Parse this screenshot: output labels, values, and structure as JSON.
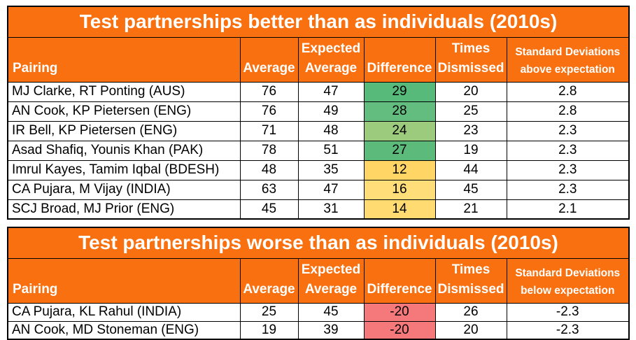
{
  "colors": {
    "orange": "#F8700F",
    "header_text": "#FFFFFF",
    "body_text": "#000000",
    "border": "#000000",
    "green_strong": "#57BA7A",
    "green_light": "#9CCB7D",
    "yellow": "#FFD666",
    "red": "#F5797B"
  },
  "chart_data": [
    {
      "type": "table",
      "title": "Test partnerships better than as individuals (2010s)",
      "headers": {
        "pairing": "Pairing",
        "average": "Average",
        "expected": "Expected\nAverage",
        "difference": "Difference",
        "times": "Times\nDismissed",
        "sd": "Standard Deviations\nabove expectation"
      },
      "rows": [
        {
          "pairing": "MJ Clarke, RT Ponting (AUS)",
          "average": "76",
          "expected": "47",
          "difference": "29",
          "times": "20",
          "sd": "2.8",
          "diff_color": "#57BA7A"
        },
        {
          "pairing": "AN Cook, KP Pietersen (ENG)",
          "average": "76",
          "expected": "49",
          "difference": "28",
          "times": "25",
          "sd": "2.8",
          "diff_color": "#63BD7F"
        },
        {
          "pairing": "IR Bell, KP Pietersen (ENG)",
          "average": "71",
          "expected": "48",
          "difference": "24",
          "times": "23",
          "sd": "2.3",
          "diff_color": "#9CCB7D"
        },
        {
          "pairing": "Asad Shafiq, Younis Khan (PAK)",
          "average": "78",
          "expected": "51",
          "difference": "27",
          "times": "19",
          "sd": "2.3",
          "diff_color": "#5CBB7B"
        },
        {
          "pairing": "Imrul Kayes, Tamim Iqbal (BDESH)",
          "average": "48",
          "expected": "35",
          "difference": "12",
          "times": "44",
          "sd": "2.3",
          "diff_color": "#FFD666"
        },
        {
          "pairing": "CA Pujara, M Vijay (INDIA)",
          "average": "63",
          "expected": "47",
          "difference": "16",
          "times": "45",
          "sd": "2.3",
          "diff_color": "#FFDE7A"
        },
        {
          "pairing": "SCJ Broad, MJ Prior (ENG)",
          "average": "45",
          "expected": "31",
          "difference": "14",
          "times": "21",
          "sd": "2.1",
          "diff_color": "#FFDB72"
        }
      ]
    },
    {
      "type": "table",
      "title": "Test partnerships worse than as individuals (2010s)",
      "headers": {
        "pairing": "Pairing",
        "average": "Average",
        "expected": "Expected\nAverage",
        "difference": "Difference",
        "times": "Times\nDismissed",
        "sd": "Standard Deviations\nbelow expectation"
      },
      "rows": [
        {
          "pairing": "CA Pujara, KL Rahul (INDIA)",
          "average": "25",
          "expected": "45",
          "difference": "-20",
          "times": "26",
          "sd": "-2.3",
          "diff_color": "#F5797B"
        },
        {
          "pairing": "AN Cook, MD Stoneman (ENG)",
          "average": "19",
          "expected": "39",
          "difference": "-20",
          "times": "20",
          "sd": "-2.3",
          "diff_color": "#F5797B"
        }
      ]
    }
  ]
}
